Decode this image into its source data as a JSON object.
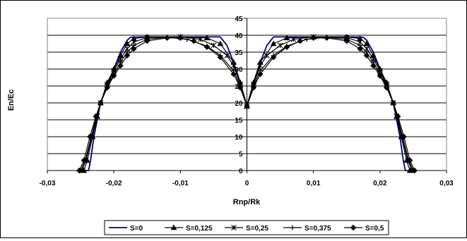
{
  "chart_data": {
    "type": "line",
    "xlabel": "Rnp/Rk",
    "ylabel": "En/Ec",
    "xlim": [
      -0.03,
      0.03
    ],
    "ylim": [
      0,
      45
    ],
    "x_ticks": [
      -0.03,
      -0.02,
      -0.01,
      0,
      0.01,
      0.02,
      0.03
    ],
    "x_tick_labels": [
      "-0,03",
      "-0,02",
      "-0,01",
      "0",
      "0,01",
      "0,02",
      "0,03"
    ],
    "y_ticks": [
      0,
      5,
      10,
      15,
      20,
      25,
      30,
      35,
      40,
      45
    ],
    "y_tick_labels": [
      "0",
      "5",
      "10",
      "15",
      "20",
      "25",
      "30",
      "35",
      "40",
      "45"
    ],
    "grid": true,
    "legend_position": "bottom",
    "series": [
      {
        "name": "S=0",
        "color": "#000080",
        "marker": "none",
        "points": [
          [
            -0.0245,
            0
          ],
          [
            -0.0238,
            0
          ],
          [
            -0.0235,
            3
          ],
          [
            -0.023,
            10
          ],
          [
            -0.0225,
            15
          ],
          [
            -0.022,
            20
          ],
          [
            -0.021,
            25
          ],
          [
            -0.02,
            30
          ],
          [
            -0.019,
            35
          ],
          [
            -0.018,
            38.5
          ],
          [
            -0.0175,
            39.4
          ],
          [
            -0.016,
            39.5
          ],
          [
            -0.01,
            39.5
          ],
          [
            -0.004,
            39.5
          ],
          [
            -0.003,
            37
          ],
          [
            -0.002,
            32
          ],
          [
            -0.001,
            26
          ],
          [
            0,
            19
          ],
          [
            0.001,
            26
          ],
          [
            0.002,
            32
          ],
          [
            0.003,
            37
          ],
          [
            0.004,
            39.5
          ],
          [
            0.01,
            39.5
          ],
          [
            0.016,
            39.5
          ],
          [
            0.0175,
            39.4
          ],
          [
            0.018,
            38.5
          ],
          [
            0.019,
            35
          ],
          [
            0.02,
            30
          ],
          [
            0.021,
            25
          ],
          [
            0.022,
            20
          ],
          [
            0.0225,
            15
          ],
          [
            0.023,
            10
          ],
          [
            0.0235,
            3
          ],
          [
            0.0238,
            0
          ],
          [
            0.0245,
            0
          ]
        ]
      },
      {
        "name": "S=0,125",
        "color": "#000000",
        "marker": "triangle",
        "points": [
          [
            -0.0245,
            0
          ],
          [
            -0.024,
            3
          ],
          [
            -0.0232,
            10
          ],
          [
            -0.0225,
            16
          ],
          [
            -0.022,
            20
          ],
          [
            -0.021,
            26
          ],
          [
            -0.02,
            30
          ],
          [
            -0.019,
            34
          ],
          [
            -0.018,
            37.5
          ],
          [
            -0.017,
            39
          ],
          [
            -0.015,
            39.5
          ],
          [
            -0.01,
            39.5
          ],
          [
            -0.006,
            39.2
          ],
          [
            -0.004,
            37.5
          ],
          [
            -0.002,
            32
          ],
          [
            -0.001,
            26
          ],
          [
            0,
            19
          ],
          [
            0.001,
            26
          ],
          [
            0.002,
            32
          ],
          [
            0.004,
            37.5
          ],
          [
            0.006,
            39.2
          ],
          [
            0.01,
            39.5
          ],
          [
            0.015,
            39.5
          ],
          [
            0.017,
            39
          ],
          [
            0.018,
            37.5
          ],
          [
            0.019,
            34
          ],
          [
            0.02,
            30
          ],
          [
            0.021,
            26
          ],
          [
            0.022,
            20
          ],
          [
            0.0225,
            16
          ],
          [
            0.0232,
            10
          ],
          [
            0.024,
            3
          ],
          [
            0.0245,
            0
          ]
        ]
      },
      {
        "name": "S=0,25",
        "color": "#000000",
        "marker": "star",
        "points": [
          [
            -0.0248,
            0
          ],
          [
            -0.0242,
            3
          ],
          [
            -0.0233,
            10
          ],
          [
            -0.0225,
            16
          ],
          [
            -0.022,
            20
          ],
          [
            -0.021,
            25.5
          ],
          [
            -0.02,
            29.5
          ],
          [
            -0.019,
            33
          ],
          [
            -0.018,
            36
          ],
          [
            -0.017,
            38
          ],
          [
            -0.015,
            39.3
          ],
          [
            -0.01,
            39.5
          ],
          [
            -0.007,
            38.8
          ],
          [
            -0.005,
            37
          ],
          [
            -0.003,
            34
          ],
          [
            -0.002,
            31
          ],
          [
            -0.001,
            25.5
          ],
          [
            0,
            19
          ],
          [
            0.001,
            25.5
          ],
          [
            0.002,
            31
          ],
          [
            0.003,
            34
          ],
          [
            0.005,
            37
          ],
          [
            0.007,
            38.8
          ],
          [
            0.01,
            39.5
          ],
          [
            0.015,
            39.3
          ],
          [
            0.017,
            38
          ],
          [
            0.018,
            36
          ],
          [
            0.019,
            33
          ],
          [
            0.02,
            29.5
          ],
          [
            0.021,
            25.5
          ],
          [
            0.022,
            20
          ],
          [
            0.0225,
            16
          ],
          [
            0.0233,
            10
          ],
          [
            0.0242,
            3
          ],
          [
            0.0248,
            0
          ]
        ]
      },
      {
        "name": "S=0,375",
        "color": "#000000",
        "marker": "plus",
        "points": [
          [
            -0.025,
            0
          ],
          [
            -0.0243,
            3
          ],
          [
            -0.0234,
            10
          ],
          [
            -0.0226,
            16
          ],
          [
            -0.022,
            20
          ],
          [
            -0.021,
            25
          ],
          [
            -0.02,
            28.5
          ],
          [
            -0.019,
            32
          ],
          [
            -0.018,
            35
          ],
          [
            -0.017,
            37
          ],
          [
            -0.015,
            38.8
          ],
          [
            -0.012,
            39.4
          ],
          [
            -0.009,
            38.8
          ],
          [
            -0.006,
            36.8
          ],
          [
            -0.004,
            34
          ],
          [
            -0.002,
            29.5
          ],
          [
            -0.001,
            25
          ],
          [
            0,
            19
          ],
          [
            0.001,
            25
          ],
          [
            0.002,
            29.5
          ],
          [
            0.004,
            34
          ],
          [
            0.006,
            36.8
          ],
          [
            0.009,
            38.8
          ],
          [
            0.012,
            39.4
          ],
          [
            0.015,
            38.8
          ],
          [
            0.017,
            37
          ],
          [
            0.018,
            35
          ],
          [
            0.019,
            32
          ],
          [
            0.02,
            28.5
          ],
          [
            0.021,
            25
          ],
          [
            0.022,
            20
          ],
          [
            0.0226,
            16
          ],
          [
            0.0234,
            10
          ],
          [
            0.0243,
            3
          ],
          [
            0.025,
            0
          ]
        ]
      },
      {
        "name": "S=0,5",
        "color": "#000000",
        "marker": "diamond",
        "points": [
          [
            -0.0252,
            0
          ],
          [
            -0.0245,
            3
          ],
          [
            -0.0236,
            10
          ],
          [
            -0.0227,
            16
          ],
          [
            -0.022,
            20
          ],
          [
            -0.021,
            24.5
          ],
          [
            -0.02,
            28
          ],
          [
            -0.019,
            31
          ],
          [
            -0.018,
            34
          ],
          [
            -0.017,
            36
          ],
          [
            -0.015,
            38.3
          ],
          [
            -0.012,
            39.2
          ],
          [
            -0.01,
            39.2
          ],
          [
            -0.008,
            38.3
          ],
          [
            -0.006,
            36.5
          ],
          [
            -0.004,
            33.5
          ],
          [
            -0.002,
            28.5
          ],
          [
            -0.001,
            24.5
          ],
          [
            0,
            19
          ],
          [
            0.001,
            24.5
          ],
          [
            0.002,
            28.5
          ],
          [
            0.004,
            33.5
          ],
          [
            0.006,
            36.5
          ],
          [
            0.008,
            38.3
          ],
          [
            0.01,
            39.2
          ],
          [
            0.012,
            39.2
          ],
          [
            0.015,
            38.3
          ],
          [
            0.017,
            36
          ],
          [
            0.018,
            34
          ],
          [
            0.019,
            31
          ],
          [
            0.02,
            28
          ],
          [
            0.021,
            24.5
          ],
          [
            0.022,
            20
          ],
          [
            0.0227,
            16
          ],
          [
            0.0236,
            10
          ],
          [
            0.0245,
            3
          ],
          [
            0.0252,
            0
          ]
        ]
      }
    ]
  }
}
